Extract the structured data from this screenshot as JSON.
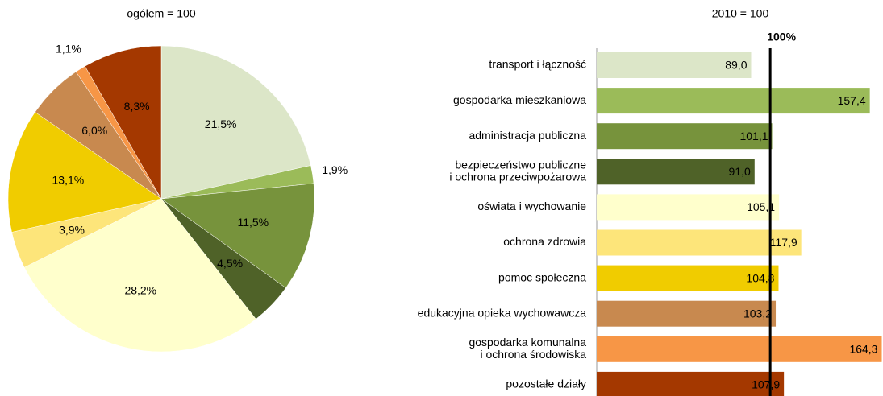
{
  "chart_data": [
    {
      "type": "pie",
      "title": "ogółem = 100",
      "values": [
        21.5,
        1.9,
        11.5,
        4.5,
        28.2,
        3.9,
        13.1,
        6.0,
        1.1,
        8.3
      ],
      "value_labels": [
        "21,5%",
        "1,9%",
        "11,5%",
        "4,5%",
        "28,2%",
        "3,9%",
        "13,1%",
        "6,0%",
        "1,1%",
        "8,3%"
      ],
      "colors": [
        "#dce6c8",
        "#9bbb59",
        "#77933c",
        "#4f6228",
        "#ffffcc",
        "#fde57a",
        "#f0cc00",
        "#c8894f",
        "#f79646",
        "#a43800"
      ]
    },
    {
      "type": "hbar",
      "title": "2010 = 100",
      "categories": [
        "transport i łączność",
        "gospodarka mieszkaniowa",
        "administracja publiczna",
        [
          "bezpieczeństwo publiczne",
          "i ochrona przeciwpożarowa"
        ],
        "oświata i wychowanie",
        "ochrona zdrowia",
        "pomoc społeczna",
        "edukacyjna opieka wychowawcza",
        [
          "gospodarka komunalna",
          "i ochrona środowiska"
        ],
        "pozostałe działy"
      ],
      "values": [
        89.0,
        157.4,
        101.1,
        91.0,
        105.1,
        117.9,
        104.8,
        103.2,
        164.3,
        107.9
      ],
      "value_labels": [
        "89,0",
        "157,4",
        "101,1",
        "91,0",
        "105,1",
        "117,9",
        "104,8",
        "103,2",
        "164,3",
        "107,9"
      ],
      "colors": [
        "#dce6c8",
        "#9bbb59",
        "#77933c",
        "#4f6228",
        "#ffffcc",
        "#fde57a",
        "#f0cc00",
        "#c8894f",
        "#f79646",
        "#a43800"
      ],
      "xlim": [
        0,
        165
      ],
      "reference": {
        "value": 100,
        "label": "100%"
      }
    }
  ]
}
